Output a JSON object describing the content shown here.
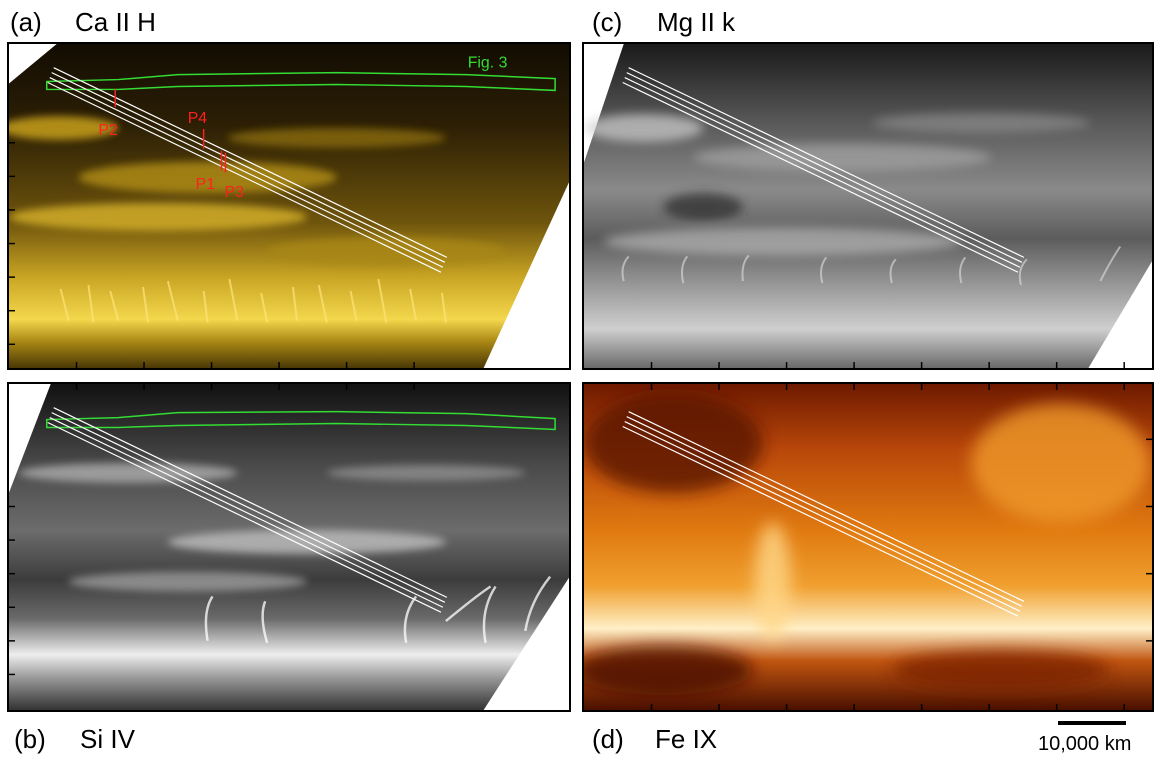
{
  "panels": {
    "a": {
      "letter": "(a)",
      "line": "Ca II H",
      "inner_label": "Fig. 3",
      "points": {
        "p1": "P1",
        "p2": "P2",
        "p3": "P3",
        "p4": "P4"
      },
      "colors": {
        "bright": "#f2d24a",
        "mid": "#9c7a12",
        "dark": "#1a1203"
      }
    },
    "b": {
      "letter": "(b)",
      "line": "Si IV",
      "colors": {
        "bright": "#f4f4f4",
        "mid": "#7a7a7a",
        "dark": "#141414"
      }
    },
    "c": {
      "letter": "(c)",
      "line": "Mg II k",
      "colors": {
        "bright": "#d8d8d8",
        "mid": "#6a6a6a",
        "dark": "#1e1e1e"
      }
    },
    "d": {
      "letter": "(d)",
      "line": "Fe IX",
      "colors": {
        "bright": "#ffe6b0",
        "mid": "#e8820c",
        "dark": "#5a1400"
      }
    }
  },
  "scale": {
    "label": "10,000 km"
  },
  "colors": {
    "contour": "#33dd33",
    "marker": "#ff2020",
    "slit": "#ffffff",
    "frame": "#000000"
  }
}
